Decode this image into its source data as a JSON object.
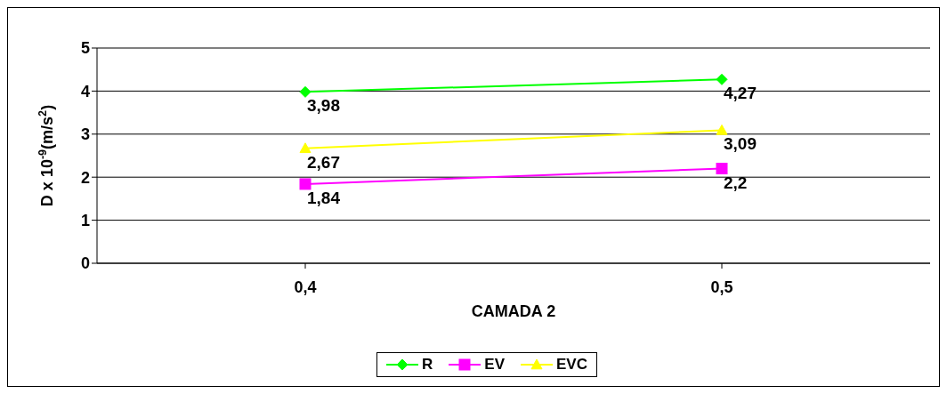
{
  "chart_data": {
    "type": "line",
    "xlabel": "CAMADA 2",
    "ylabel": "D x 10$^{-9}$(m/s$^{2}$)",
    "categories": [
      "0,4",
      "0,5"
    ],
    "series": [
      {
        "name": "R",
        "color": "#00ff00",
        "marker": "diamond",
        "values": [
          3.98,
          4.27
        ],
        "value_labels": [
          "3,98",
          "4,27"
        ]
      },
      {
        "name": "EV",
        "color": "#ff00ff",
        "marker": "square",
        "values": [
          1.84,
          2.2
        ],
        "value_labels": [
          "1,84",
          "2,2"
        ]
      },
      {
        "name": "EVC",
        "color": "#ffff00",
        "marker": "triangle",
        "values": [
          2.67,
          3.09
        ],
        "value_labels": [
          "2,67",
          "3,09"
        ]
      }
    ],
    "ylim": [
      0,
      5
    ],
    "yticks": [
      0,
      1,
      2,
      3,
      4,
      5
    ],
    "grid": "y",
    "legend": "bottom"
  }
}
